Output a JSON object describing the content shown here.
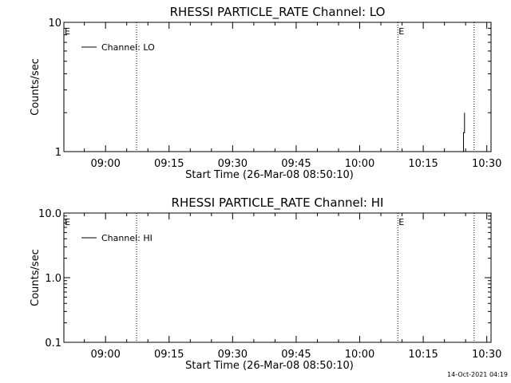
{
  "footer": {
    "timestamp": "14-Oct-2021 04:19"
  },
  "chart_data": [
    {
      "type": "line",
      "title": "RHESSI PARTICLE_RATE Channel: LO",
      "xlabel": "Start Time (26-Mar-08 08:50:10)",
      "ylabel": "Counts/sec",
      "xlim": [
        "08:50:10",
        "10:31:00"
      ],
      "ylim": [
        1,
        10
      ],
      "yscale": "log",
      "xticks": [
        "09:00",
        "09:15",
        "09:30",
        "09:45",
        "10:00",
        "10:15",
        "10:30"
      ],
      "yticks": [
        "1",
        "10"
      ],
      "legend": {
        "position": "top-left",
        "entries": [
          "Channel: LO"
        ]
      },
      "markers": [
        {
          "label": "E",
          "time": "08:50:10"
        },
        {
          "label": "",
          "time": "09:07:20"
        },
        {
          "label": "E",
          "time": "10:09:00"
        },
        {
          "label": "",
          "time": "10:27:00"
        }
      ],
      "series": [
        {
          "name": "Channel: LO",
          "points": [
            [
              "10:24:30",
              1
            ],
            [
              "10:24:30",
              1.4
            ],
            [
              "10:24:45",
              1.4
            ],
            [
              "10:24:45",
              2.0
            ]
          ]
        }
      ]
    },
    {
      "type": "line",
      "title": "RHESSI PARTICLE_RATE Channel: HI",
      "xlabel": "Start Time (26-Mar-08 08:50:10)",
      "ylabel": "Counts/sec",
      "xlim": [
        "08:50:10",
        "10:31:00"
      ],
      "ylim": [
        0.1,
        10
      ],
      "yscale": "log",
      "xticks": [
        "09:00",
        "09:15",
        "09:30",
        "09:45",
        "10:00",
        "10:15",
        "10:30"
      ],
      "yticks": [
        "0.1",
        "1.0",
        "10.0"
      ],
      "legend": {
        "position": "top-left",
        "entries": [
          "Channel: HI"
        ]
      },
      "markers": [
        {
          "label": "E",
          "time": "08:50:10"
        },
        {
          "label": "",
          "time": "09:07:20"
        },
        {
          "label": "E",
          "time": "10:09:00"
        },
        {
          "label": "",
          "time": "10:27:00"
        }
      ],
      "series": [
        {
          "name": "Channel: HI",
          "points": []
        }
      ]
    }
  ]
}
